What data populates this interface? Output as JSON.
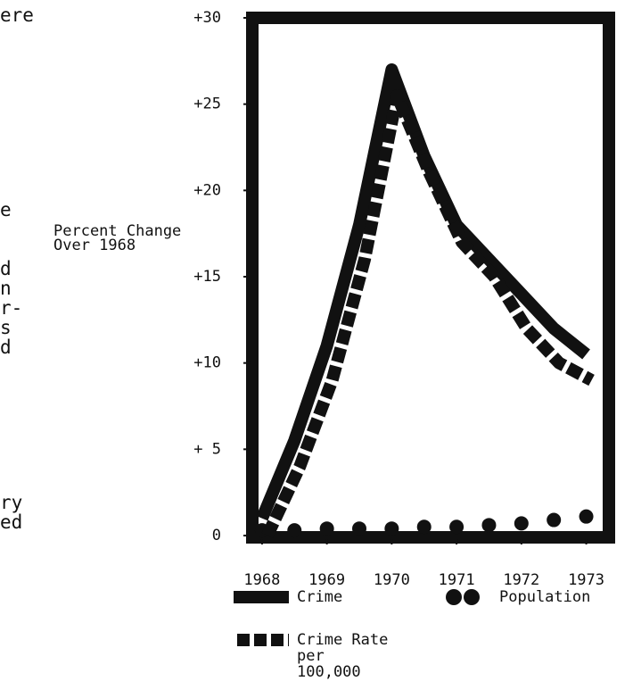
{
  "side_text": [
    "ere",
    "e",
    "d",
    "n",
    "r-",
    "s",
    "d",
    "ry",
    "ed"
  ],
  "chart_data": {
    "type": "line",
    "y_label": [
      "Percent Change",
      "Over 1968"
    ],
    "x": [
      1968,
      1968.5,
      1969,
      1969.5,
      1970,
      1970.5,
      1971,
      1971.5,
      1972,
      1972.5,
      1973
    ],
    "series": [
      {
        "name": "Crime",
        "color": "#111111",
        "style": "solid",
        "values": [
          1,
          5.5,
          11,
          18,
          27,
          22,
          18,
          16,
          14,
          12,
          10.5
        ]
      },
      {
        "name": "Population",
        "color": "#111111",
        "style": "dots",
        "values": [
          0.2,
          0.2,
          0.3,
          0.3,
          0.3,
          0.4,
          0.4,
          0.5,
          0.6,
          0.8,
          1
        ]
      },
      {
        "name": "Crime Rate per 100,000",
        "color": "#111111",
        "style": "dashed",
        "values": [
          0,
          4,
          9,
          16,
          25.5,
          21,
          17,
          15,
          12,
          10,
          9
        ]
      }
    ],
    "xlim": [
      1967.85,
      1973.35
    ],
    "xticks": [
      1968,
      1969,
      1970,
      1971,
      1972,
      1973
    ],
    "ylim": [
      0,
      30
    ],
    "yticks": [
      0,
      {
        "value": 5,
        "label": "+ 5"
      },
      {
        "value": 10,
        "label": "+10"
      },
      {
        "value": 15,
        "label": "+15"
      },
      {
        "value": 20,
        "label": "+20"
      },
      {
        "value": 25,
        "label": "+25"
      },
      {
        "value": 30,
        "label": "+30"
      }
    ],
    "grid": false
  }
}
